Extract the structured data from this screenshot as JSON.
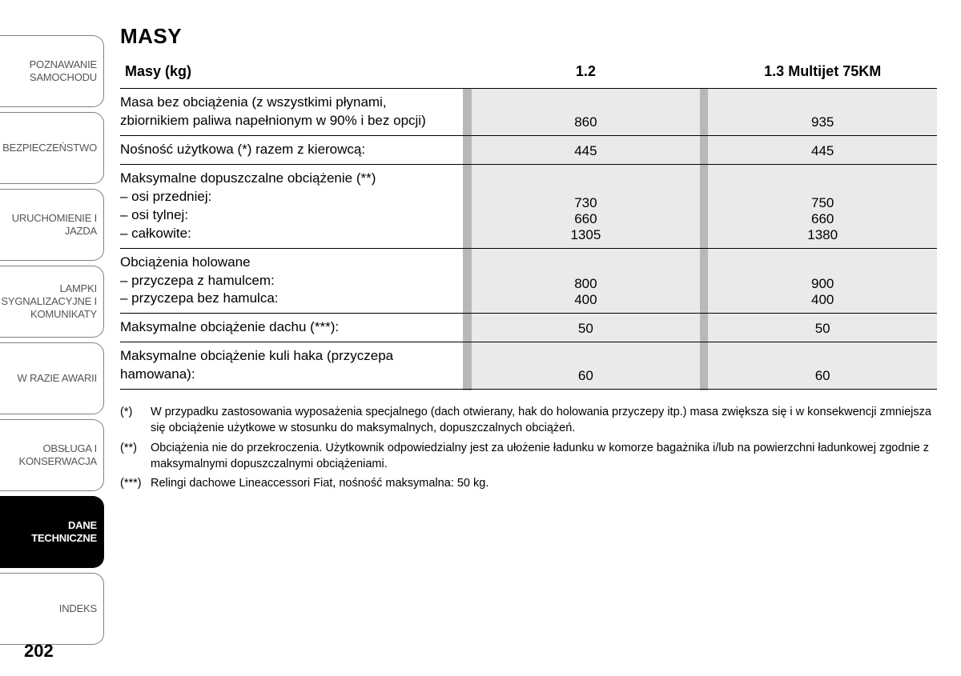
{
  "tabs": [
    "POZNAWANIE SAMOCHODU",
    "BEZPIECZEŃSTWO",
    "URUCHOMIENIE I JAZDA",
    "LAMPKI SYGNALIZACYJNE I KOMUNIKATY",
    "W RAZIE AWARII",
    "OBSŁUGA I KONSERWACJA",
    "DANE TECHNICZNE",
    "INDEKS"
  ],
  "active_tab_index": 6,
  "title": "MASY",
  "table": {
    "header": [
      "Masy (kg)",
      "1.2",
      "1.3 Multijet 75KM"
    ],
    "rows": [
      {
        "label": "Masa bez obciążenia (z wszystkimi płynami, zbiornikiem paliwa napełnionym w 90% i bez opcji)",
        "c1": "860",
        "c2": "935"
      },
      {
        "label": "Nośność użytkowa (*) razem z kierowcą:",
        "c1": "445",
        "c2": "445"
      },
      {
        "label": "Maksymalne dopuszczalne obciążenie (**)\n– osi przedniej:\n– osi tylnej:\n– całkowite:",
        "c1": "730\n660\n1305",
        "c2": "750\n660\n1380"
      },
      {
        "label": "Obciążenia holowane\n– przyczepa z hamulcem:\n– przyczepa bez hamulca:",
        "c1": "800\n400",
        "c2": "900\n400"
      },
      {
        "label": "Maksymalne obciążenie dachu (***):",
        "c1": "50",
        "c2": "50"
      },
      {
        "label": "Maksymalne obciążenie kuli haka (przyczepa hamowana):",
        "c1": "60",
        "c2": "60"
      }
    ]
  },
  "footnotes": [
    {
      "marker": "(*)",
      "text": "W przypadku zastosowania wyposażenia specjalnego (dach otwierany, hak do holowania przyczepy itp.) masa zwiększa się i w konsekwencji zmniejsza się obciążenie użytkowe w stosunku do maksymalnych, dopuszczalnych obciążeń."
    },
    {
      "marker": "(**)",
      "text": "Obciążenia nie do przekroczenia. Użytkownik odpowiedzialny jest za ułożenie ładunku w komorze bagażnika i/lub na powierzchni ładunkowej zgodnie z maksymalnymi dopuszczalnymi obciążeniami."
    },
    {
      "marker": "(***)",
      "text": "Relingi dachowe Lineaccessori Fiat, nośność maksymalna: 50 kg."
    }
  ],
  "page_number": "202"
}
